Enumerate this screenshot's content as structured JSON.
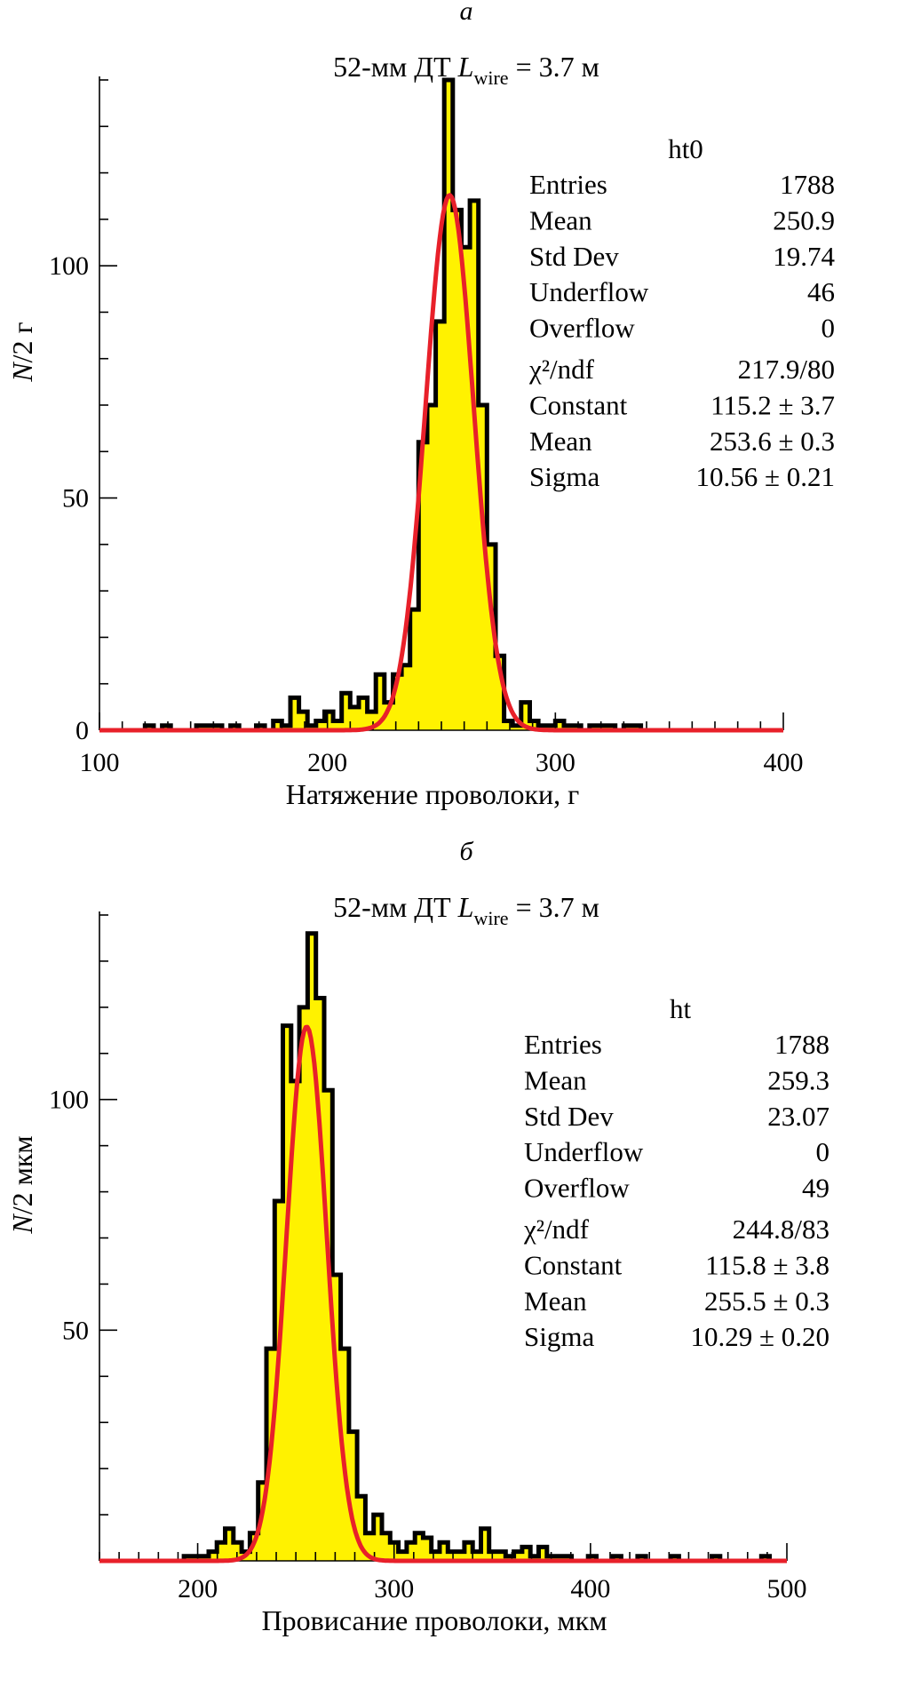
{
  "chart_data": [
    {
      "type": "histogram",
      "panel_letter": "а",
      "title_prefix": "52-мм ДТ ",
      "title_var": "L",
      "title_sub": "wire",
      "title_suffix": " = 3.7 м",
      "xlabel": "Натяжение проволоки, г",
      "ylabel_var": "N",
      "ylabel_rest": "/2 г",
      "xlim": [
        100,
        400
      ],
      "ylim": [
        0,
        140
      ],
      "xticks": [
        100,
        200,
        300,
        400
      ],
      "xtick_labels": [
        "100",
        "200",
        "300",
        "400"
      ],
      "yticks": [
        0,
        50,
        100
      ],
      "ytick_labels": [
        "0",
        "50",
        "100"
      ],
      "bin_width": 3.75,
      "bins": [
        [
          120,
          1
        ],
        [
          123.75,
          0
        ],
        [
          127.5,
          1
        ],
        [
          131.25,
          0
        ],
        [
          135,
          0
        ],
        [
          138.75,
          0
        ],
        [
          142.5,
          1
        ],
        [
          146.25,
          1
        ],
        [
          150,
          1
        ],
        [
          153.75,
          0
        ],
        [
          157.5,
          1
        ],
        [
          161.25,
          0
        ],
        [
          165,
          0
        ],
        [
          168.75,
          1
        ],
        [
          172.5,
          0
        ],
        [
          176.25,
          2
        ],
        [
          180,
          1
        ],
        [
          183.75,
          7
        ],
        [
          187.5,
          4
        ],
        [
          191.25,
          1
        ],
        [
          195,
          2
        ],
        [
          198.75,
          4
        ],
        [
          202.5,
          2
        ],
        [
          206.25,
          8
        ],
        [
          210,
          5
        ],
        [
          213.75,
          7
        ],
        [
          217.5,
          4
        ],
        [
          221.25,
          12
        ],
        [
          225,
          6
        ],
        [
          228.75,
          12
        ],
        [
          232.5,
          14
        ],
        [
          236.25,
          26
        ],
        [
          240,
          62
        ],
        [
          243.75,
          70
        ],
        [
          247.5,
          88
        ],
        [
          251.25,
          140
        ],
        [
          255,
          112
        ],
        [
          258.75,
          104
        ],
        [
          262.5,
          114
        ],
        [
          266.25,
          70
        ],
        [
          270,
          40
        ],
        [
          273.75,
          16
        ],
        [
          277.5,
          2
        ],
        [
          281.25,
          1
        ],
        [
          285,
          6
        ],
        [
          288.75,
          2
        ],
        [
          292.5,
          1
        ],
        [
          296.25,
          1
        ],
        [
          300,
          2
        ],
        [
          303.75,
          1
        ],
        [
          307.5,
          1
        ],
        [
          311.25,
          0
        ],
        [
          315,
          1
        ],
        [
          318.75,
          1
        ],
        [
          322.5,
          1
        ],
        [
          326.25,
          0
        ],
        [
          330,
          1
        ],
        [
          333.75,
          1
        ],
        [
          337.5,
          0
        ]
      ],
      "fit": {
        "type": "gaus",
        "constant": 115.2,
        "mean": 253.6,
        "sigma": 10.56
      },
      "stats_name": "ht0",
      "stats": [
        [
          "Entries",
          "1788"
        ],
        [
          "Mean",
          "250.9"
        ],
        [
          "Std Dev",
          "19.74"
        ],
        [
          "Underflow",
          "46"
        ],
        [
          "Overflow",
          "0"
        ],
        [
          "χ²/ndf",
          "217.9/80"
        ],
        [
          "Constant",
          "115.2 ± 3.7"
        ],
        [
          "Mean",
          "253.6 ± 0.3"
        ],
        [
          "Sigma",
          "10.56 ± 0.21"
        ]
      ]
    },
    {
      "type": "histogram",
      "panel_letter": "б",
      "title_prefix": "52-мм ДТ ",
      "title_var": "L",
      "title_sub": "wire",
      "title_suffix": " = 3.7 м",
      "xlabel": "Провисание проволоки, мкм",
      "ylabel_var": "N",
      "ylabel_rest": "/2 мкм",
      "xlim": [
        150,
        500
      ],
      "ylim": [
        0,
        140
      ],
      "xticks": [
        200,
        300,
        400,
        500
      ],
      "xtick_labels": [
        "200",
        "300",
        "400",
        "500"
      ],
      "yticks": [
        50,
        100
      ],
      "ytick_labels": [
        "50",
        "100"
      ],
      "bin_width": 4.2,
      "bins": [
        [
          193,
          1
        ],
        [
          197.2,
          1
        ],
        [
          201.4,
          1
        ],
        [
          205.6,
          2
        ],
        [
          209.8,
          4
        ],
        [
          214,
          7
        ],
        [
          218.2,
          4
        ],
        [
          222.4,
          2
        ],
        [
          226.6,
          6
        ],
        [
          230.8,
          17
        ],
        [
          235,
          46
        ],
        [
          239.2,
          78
        ],
        [
          243.4,
          116
        ],
        [
          247.6,
          104
        ],
        [
          251.8,
          120
        ],
        [
          256,
          136
        ],
        [
          260.2,
          122
        ],
        [
          264.4,
          102
        ],
        [
          268.6,
          62
        ],
        [
          272.8,
          46
        ],
        [
          277,
          28
        ],
        [
          281.2,
          14
        ],
        [
          285.4,
          6
        ],
        [
          289.6,
          10
        ],
        [
          293.8,
          6
        ],
        [
          298,
          4
        ],
        [
          302.2,
          2
        ],
        [
          306.4,
          4
        ],
        [
          310.6,
          6
        ],
        [
          314.8,
          5
        ],
        [
          319,
          2
        ],
        [
          323.2,
          4
        ],
        [
          327.4,
          2
        ],
        [
          331.6,
          2
        ],
        [
          335.8,
          4
        ],
        [
          340,
          2
        ],
        [
          344.2,
          7
        ],
        [
          348.4,
          2
        ],
        [
          352.6,
          2
        ],
        [
          356.8,
          1
        ],
        [
          361,
          2
        ],
        [
          365.2,
          3
        ],
        [
          369.4,
          1
        ],
        [
          373.6,
          3
        ],
        [
          377.8,
          1
        ],
        [
          382,
          1
        ],
        [
          386.2,
          1
        ],
        [
          390.4,
          0
        ],
        [
          394.6,
          0
        ],
        [
          398.8,
          1
        ],
        [
          403,
          0
        ],
        [
          407.2,
          0
        ],
        [
          411.4,
          1
        ],
        [
          415.6,
          0
        ],
        [
          419.8,
          0
        ],
        [
          424,
          1
        ],
        [
          428.2,
          0
        ],
        [
          432.4,
          0
        ],
        [
          436.6,
          0
        ],
        [
          440.8,
          1
        ],
        [
          445,
          0
        ],
        [
          449.2,
          0
        ],
        [
          453.4,
          0
        ],
        [
          457.6,
          0
        ],
        [
          461.8,
          1
        ],
        [
          466,
          0
        ],
        [
          470.2,
          0
        ],
        [
          474.4,
          0
        ],
        [
          478.6,
          0
        ],
        [
          482.8,
          0
        ],
        [
          487,
          1
        ]
      ],
      "fit": {
        "type": "gaus",
        "constant": 115.8,
        "mean": 255.5,
        "sigma": 10.29
      },
      "stats_name": "ht",
      "stats": [
        [
          "Entries",
          "1788"
        ],
        [
          "Mean",
          "259.3"
        ],
        [
          "Std Dev",
          "23.07"
        ],
        [
          "Underflow",
          "0"
        ],
        [
          "Overflow",
          "49"
        ],
        [
          "χ²/ndf",
          "244.8/83"
        ],
        [
          "Constant",
          "115.8 ± 3.8"
        ],
        [
          "Mean",
          "255.5 ± 0.3"
        ],
        [
          "Sigma",
          "10.29 ± 0.20"
        ]
      ]
    }
  ],
  "colors": {
    "fill": "#fff200",
    "line": "#000000",
    "fit": "#e8202a"
  }
}
